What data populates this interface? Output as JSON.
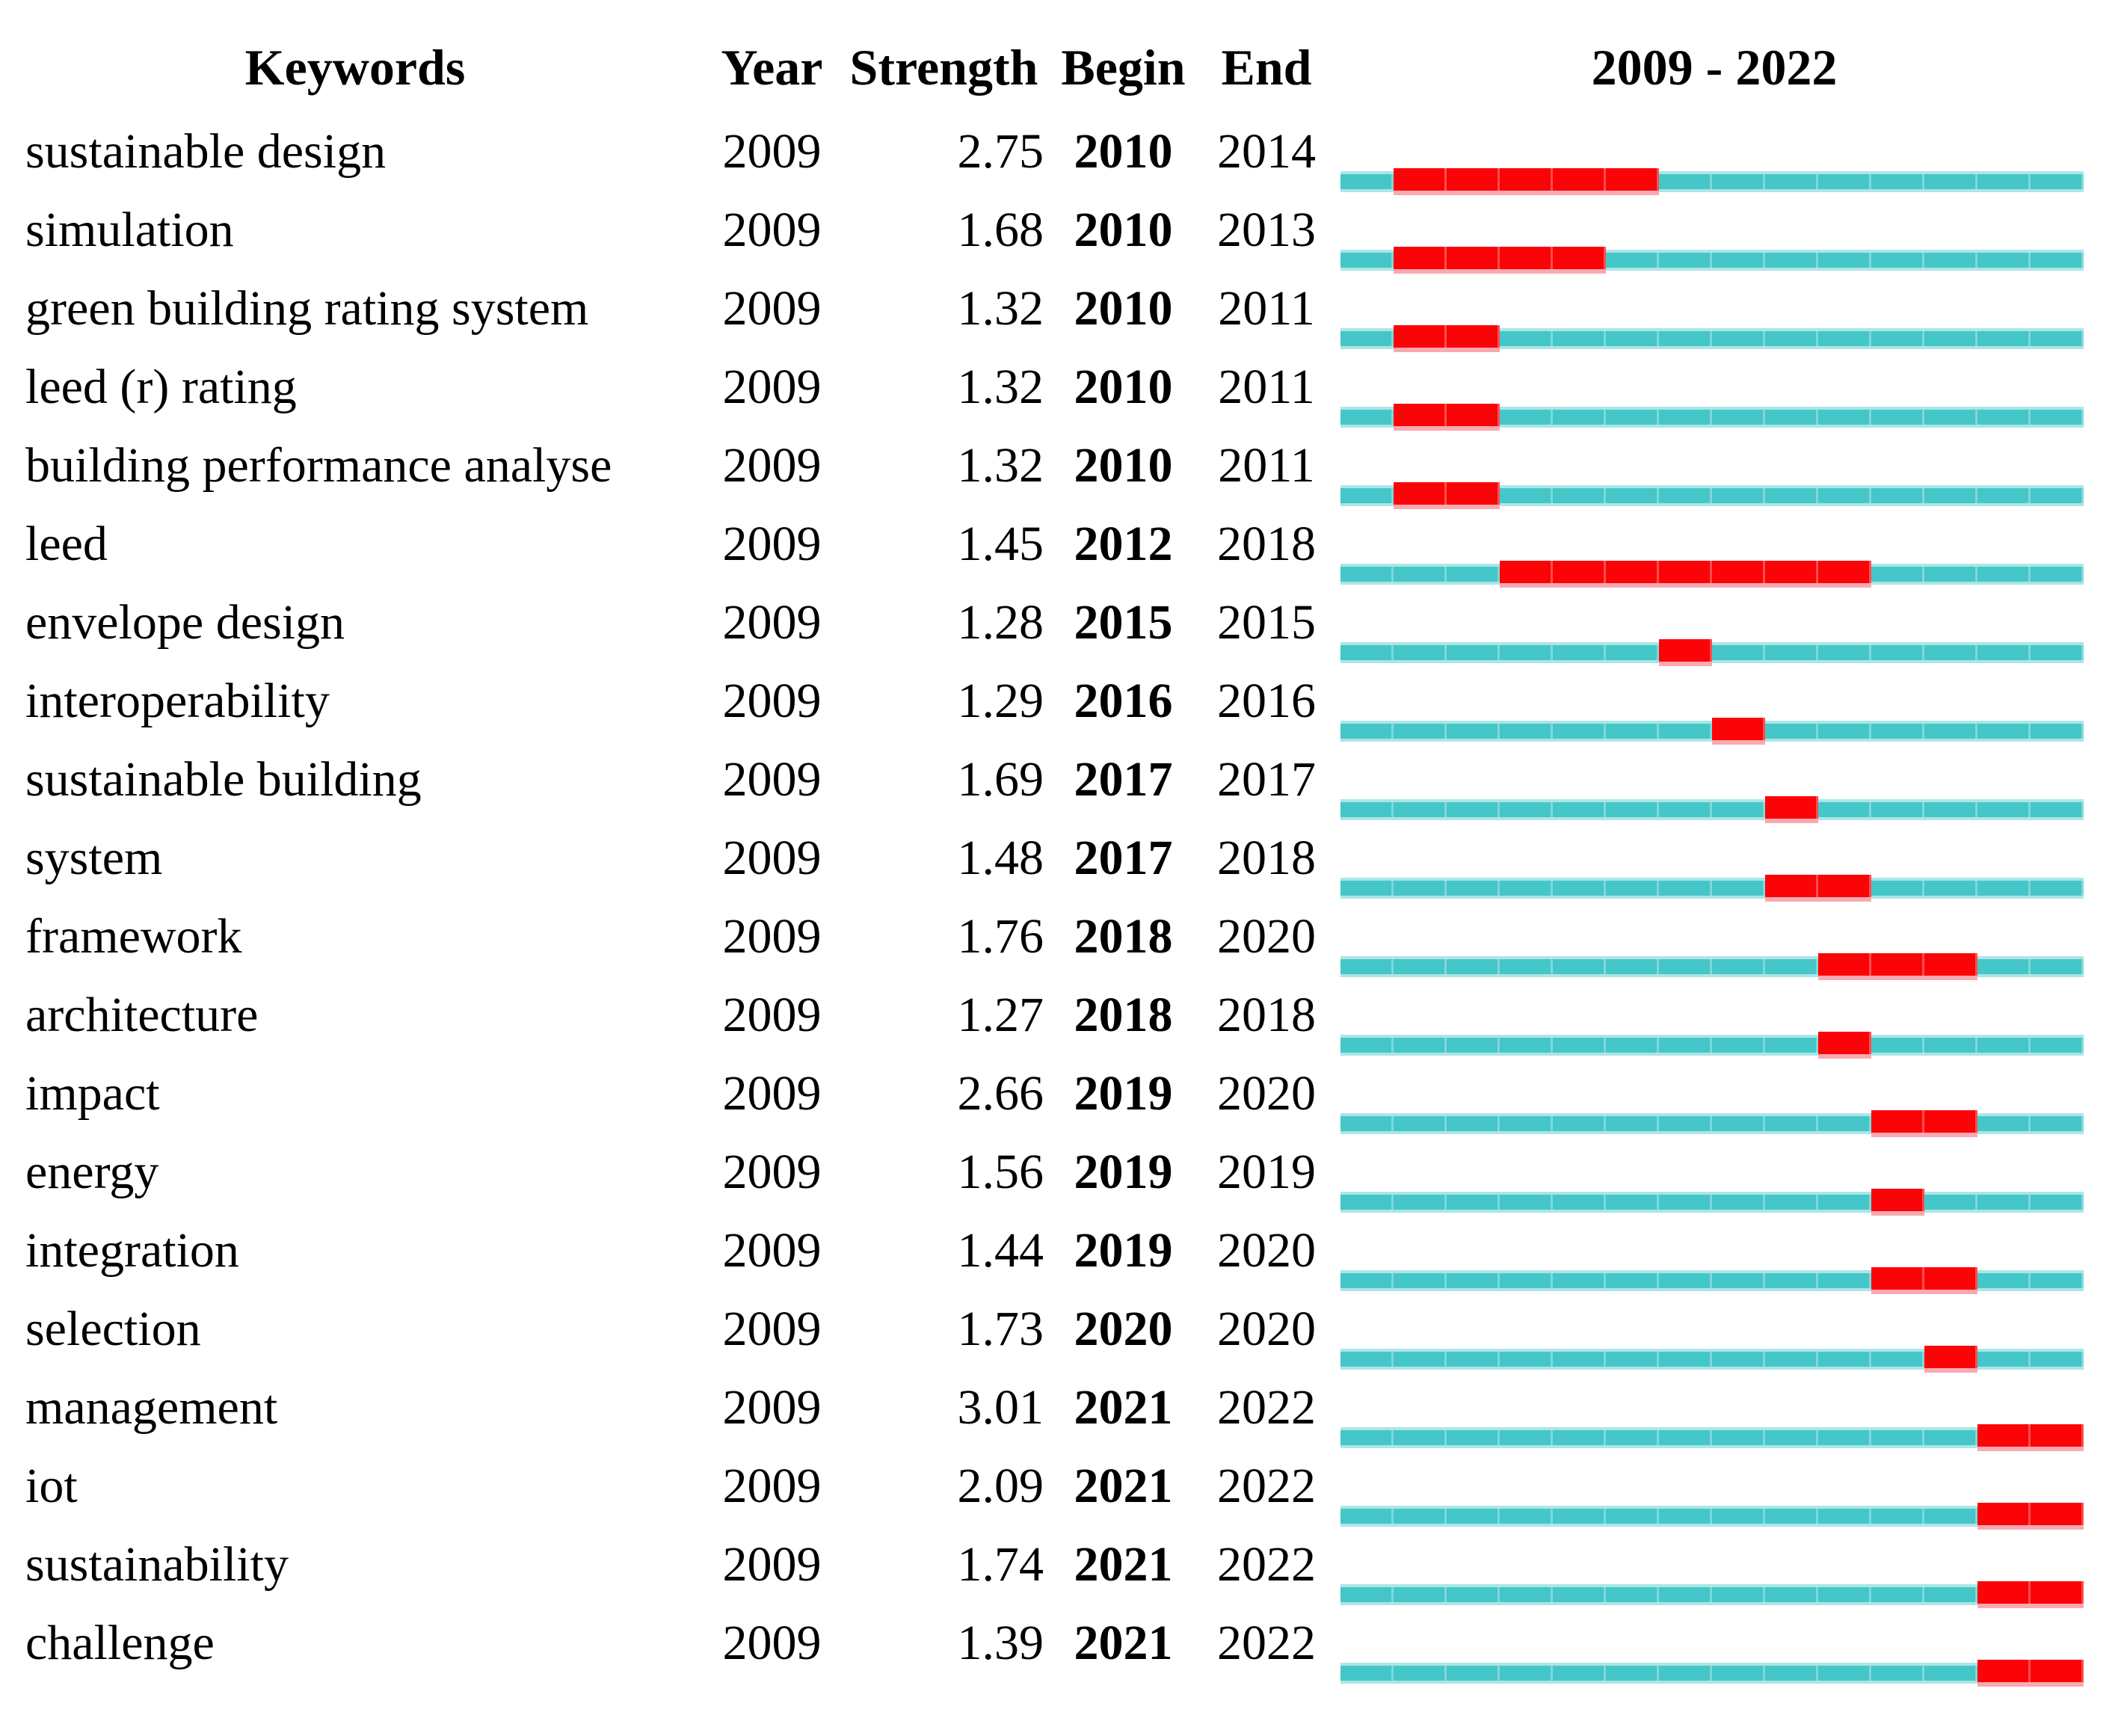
{
  "header": {
    "keywords": "Keywords",
    "year": "Year",
    "strength": "Strength",
    "begin": "Begin",
    "end": "End",
    "timeline": "2009 - 2022"
  },
  "axis": {
    "start_year": 2009,
    "end_year": 2022
  },
  "colors": {
    "track": "#45C6C8",
    "track_edge": "#ABE6E7",
    "track_separator": "#7FD8DA",
    "burst": "#FB0407",
    "burst_separator": "#FC4E4E",
    "burst_bottom_edge": "#F9A9B2",
    "text": "#000000",
    "background": "#FFFFFF"
  },
  "chart_data": {
    "type": "table",
    "title": "2009 - 2022",
    "columns": [
      "Keywords",
      "Year",
      "Strength",
      "Begin",
      "End",
      "2009 - 2022"
    ],
    "timeline_range": [
      2009,
      2022
    ],
    "legend": {
      "track_meaning": "full period 2009-2022",
      "burst_meaning": "burst duration Begin-End"
    },
    "rows": [
      {
        "keyword": "sustainable design",
        "year": 2009,
        "strength": "2.75",
        "begin": 2010,
        "end": 2014
      },
      {
        "keyword": "simulation",
        "year": 2009,
        "strength": "1.68",
        "begin": 2010,
        "end": 2013
      },
      {
        "keyword": "green building rating system",
        "year": 2009,
        "strength": "1.32",
        "begin": 2010,
        "end": 2011
      },
      {
        "keyword": "leed (r) rating",
        "year": 2009,
        "strength": "1.32",
        "begin": 2010,
        "end": 2011
      },
      {
        "keyword": "building performance analyse",
        "year": 2009,
        "strength": "1.32",
        "begin": 2010,
        "end": 2011
      },
      {
        "keyword": "leed",
        "year": 2009,
        "strength": "1.45",
        "begin": 2012,
        "end": 2018
      },
      {
        "keyword": "envelope design",
        "year": 2009,
        "strength": "1.28",
        "begin": 2015,
        "end": 2015
      },
      {
        "keyword": "interoperability",
        "year": 2009,
        "strength": "1.29",
        "begin": 2016,
        "end": 2016
      },
      {
        "keyword": "sustainable building",
        "year": 2009,
        "strength": "1.69",
        "begin": 2017,
        "end": 2017
      },
      {
        "keyword": "system",
        "year": 2009,
        "strength": "1.48",
        "begin": 2017,
        "end": 2018
      },
      {
        "keyword": "framework",
        "year": 2009,
        "strength": "1.76",
        "begin": 2018,
        "end": 2020
      },
      {
        "keyword": "architecture",
        "year": 2009,
        "strength": "1.27",
        "begin": 2018,
        "end": 2018
      },
      {
        "keyword": "impact",
        "year": 2009,
        "strength": "2.66",
        "begin": 2019,
        "end": 2020
      },
      {
        "keyword": "energy",
        "year": 2009,
        "strength": "1.56",
        "begin": 2019,
        "end": 2019
      },
      {
        "keyword": "integration",
        "year": 2009,
        "strength": "1.44",
        "begin": 2019,
        "end": 2020
      },
      {
        "keyword": "selection",
        "year": 2009,
        "strength": "1.73",
        "begin": 2020,
        "end": 2020
      },
      {
        "keyword": "management",
        "year": 2009,
        "strength": "3.01",
        "begin": 2021,
        "end": 2022
      },
      {
        "keyword": "iot",
        "year": 2009,
        "strength": "2.09",
        "begin": 2021,
        "end": 2022
      },
      {
        "keyword": "sustainability",
        "year": 2009,
        "strength": "1.74",
        "begin": 2021,
        "end": 2022
      },
      {
        "keyword": "challenge",
        "year": 2009,
        "strength": "1.39",
        "begin": 2021,
        "end": 2022
      }
    ]
  }
}
